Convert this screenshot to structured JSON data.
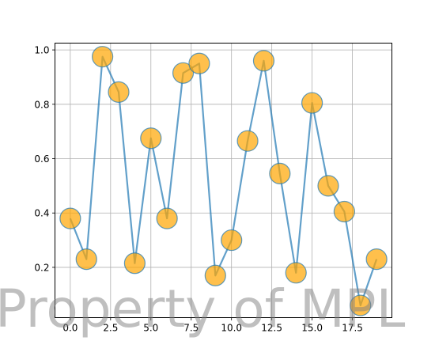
{
  "chart_data": {
    "type": "line",
    "title": "",
    "xlabel": "",
    "ylabel": "",
    "x": [
      0,
      1,
      2,
      3,
      4,
      5,
      6,
      7,
      8,
      9,
      10,
      11,
      12,
      13,
      14,
      15,
      16,
      17,
      18,
      19
    ],
    "series": [
      {
        "values": [
          0.38,
          0.23,
          0.975,
          0.845,
          0.215,
          0.675,
          0.38,
          0.915,
          0.95,
          0.17,
          0.3,
          0.665,
          0.96,
          0.545,
          0.18,
          0.805,
          0.5,
          0.405,
          0.06,
          0.23
        ]
      }
    ],
    "xlim": [
      -0.95,
      19.95
    ],
    "ylim": [
      0.015,
      1.025
    ],
    "xticks": [
      0.0,
      2.5,
      5.0,
      7.5,
      10.0,
      12.5,
      15.0,
      17.5
    ],
    "xtick_labels": [
      "0.0",
      "2.5",
      "5.0",
      "7.5",
      "10.0",
      "12.5",
      "15.0",
      "17.5"
    ],
    "yticks": [
      0.2,
      0.4,
      0.6,
      0.8,
      1.0
    ],
    "ytick_labels": [
      "0.2",
      "0.4",
      "0.6",
      "0.8",
      "1.0"
    ],
    "grid": true,
    "legend": "none",
    "colors": {
      "line": "#1f77b4",
      "marker_fill": "#ffa500",
      "marker_edge": "#1f77b4",
      "grid": "#b0b0b0"
    }
  },
  "watermark": {
    "text": "Property of MPL"
  }
}
